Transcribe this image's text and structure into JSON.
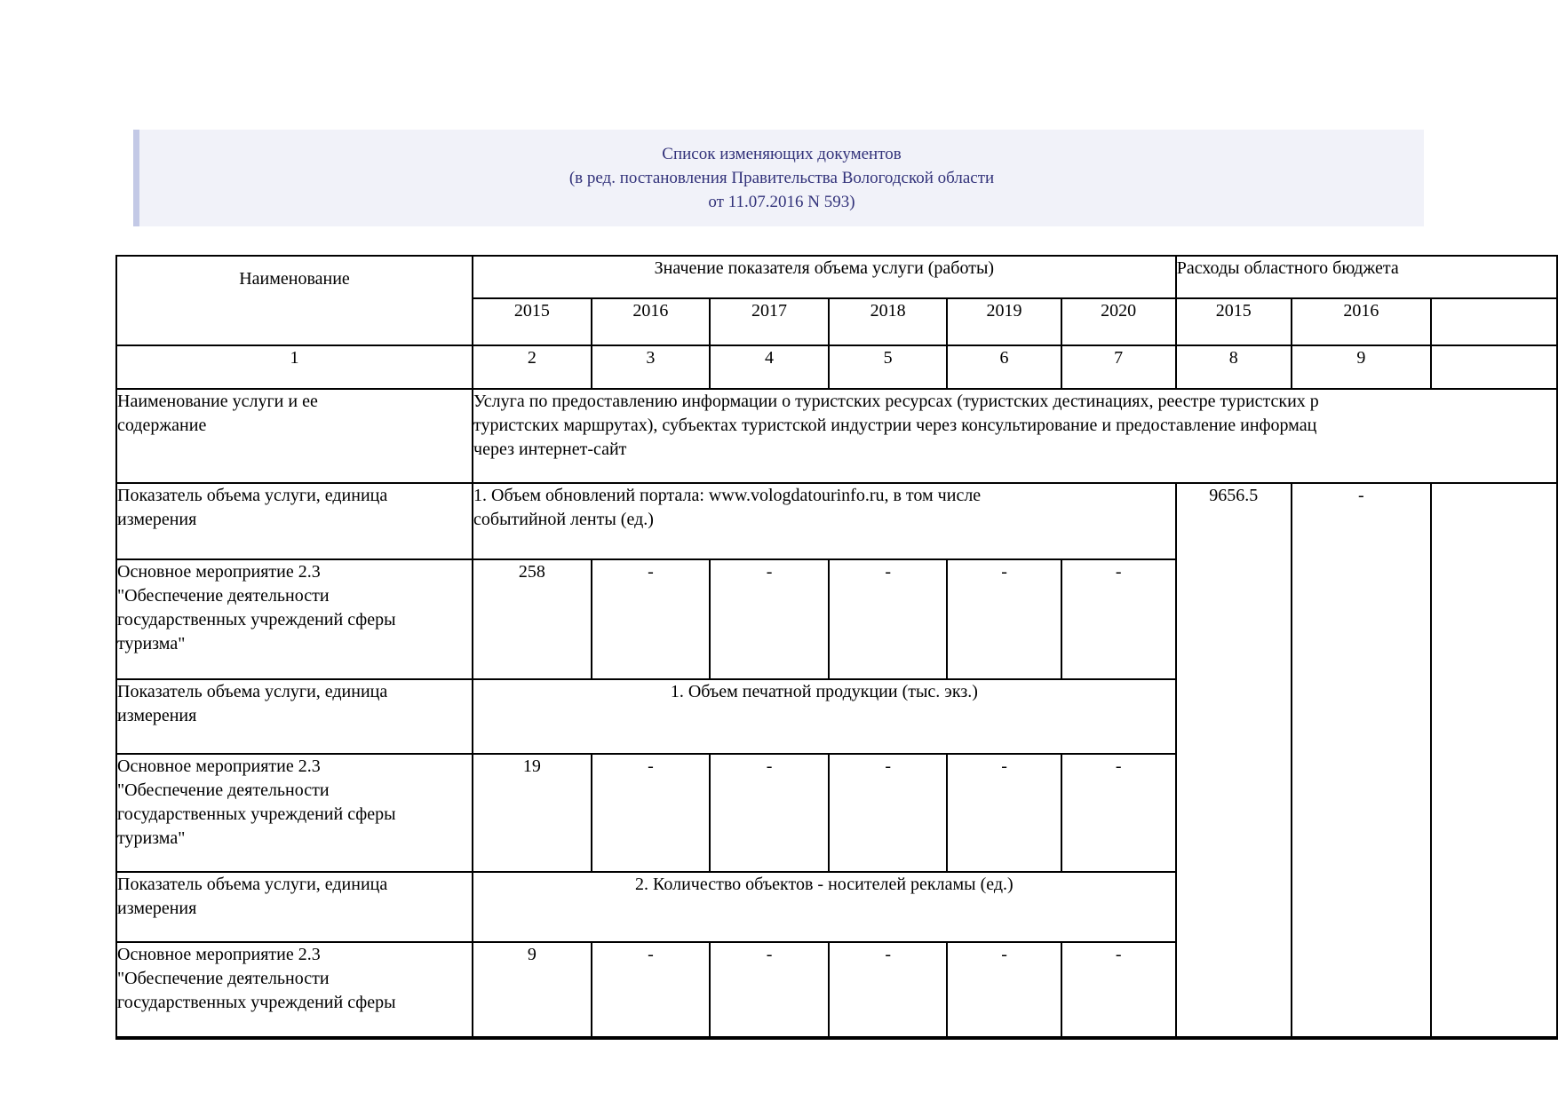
{
  "amendments_box": {
    "lines": [
      "Список изменяющих документов",
      "(в ред. постановления Правительства Вологодской области",
      "от 11.07.2016 N 593)"
    ]
  },
  "table": {
    "header": {
      "name": "Наименование",
      "values_group": "Значение показателя объема услуги (работы)",
      "expenses_group": "Расходы областного бюджета",
      "values_years": [
        "2015",
        "2016",
        "2017",
        "2018",
        "2019",
        "2020"
      ],
      "expenses_years": [
        "2015",
        "2016"
      ],
      "numbering": {
        "name": "1",
        "values": [
          "2",
          "3",
          "4",
          "5",
          "6",
          "7"
        ],
        "expenses": [
          "8",
          "9"
        ]
      }
    },
    "rows": {
      "service_name": {
        "label_lines": [
          "Наименование услуги и ее",
          "содержание"
        ],
        "text_lines": [
          "Услуга по предоставлению информации о туристских ресурсах (туристских дестинациях, реестре туристских р",
          "туристских маршрутах), субъектах туристской индустрии через консультирование и предоставление информац",
          "через интернет-сайт"
        ]
      },
      "indicator1": {
        "label_lines": [
          "Показатель объема услуги, единица",
          "измерения"
        ],
        "text_lines": [
          "1. Объем обновлений портала: www.vologdatourinfo.ru, в том числе",
          "событийной ленты (ед.)"
        ]
      },
      "measure1": {
        "label_lines": [
          "Основное мероприятие 2.3",
          "\"Обеспечение деятельности",
          "государственных учреждений сферы",
          "туризма\""
        ],
        "values": [
          "258",
          "-",
          "-",
          "-",
          "-",
          "-"
        ]
      },
      "indicator2": {
        "label_lines": [
          "Показатель объема услуги, единица",
          "измерения"
        ],
        "text": "1. Объем печатной продукции (тыс. экз.)"
      },
      "measure2": {
        "label_lines": [
          "Основное мероприятие 2.3",
          "\"Обеспечение деятельности",
          "государственных учреждений сферы",
          "туризма\""
        ],
        "values": [
          "19",
          "-",
          "-",
          "-",
          "-",
          "-"
        ]
      },
      "indicator3": {
        "label_lines": [
          "Показатель объема услуги, единица",
          "измерения"
        ],
        "text": "2. Количество объектов - носителей рекламы (ед.)"
      },
      "measure3": {
        "label_lines": [
          "Основное мероприятие 2.3",
          "\"Обеспечение деятельности",
          "государственных учреждений сферы"
        ],
        "values": [
          "9",
          "-",
          "-",
          "-",
          "-",
          "-"
        ]
      }
    },
    "expenses_cells": {
      "y2015": "9656.5",
      "y2016": "-"
    }
  },
  "colors": {
    "box_bg": "#f1f2f9",
    "box_accent": "#c3c9e6",
    "box_text": "#32327a",
    "table_border": "#000000"
  }
}
